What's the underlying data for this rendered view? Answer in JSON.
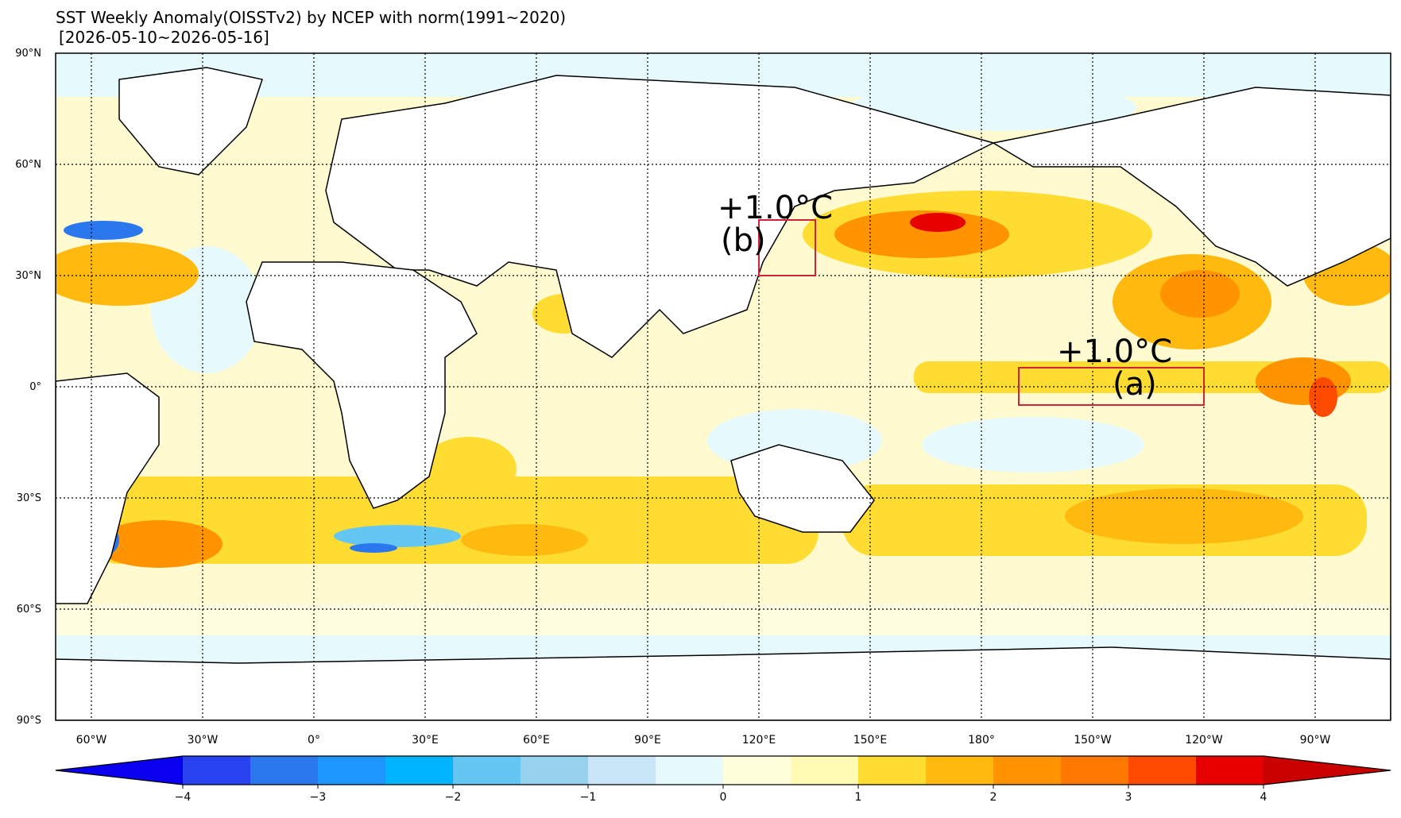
{
  "header": {
    "title": "SST Weekly Anomaly(OISSTv2) by NCEP with norm(1991~2020)",
    "date_range": "[2026-05-10~2026-05-16]"
  },
  "map": {
    "projection": "PlateCarree, central longitude 180",
    "lat_ticks": [
      "90°N",
      "60°N",
      "30°N",
      "0°",
      "30°S",
      "60°S",
      "90°S"
    ],
    "lon_ticks": [
      "60°W",
      "30°W",
      "0°",
      "30°E",
      "60°E",
      "90°E",
      "120°E",
      "150°E",
      "180°",
      "150°W",
      "120°W",
      "90°W"
    ],
    "regions": [
      {
        "id": "a",
        "label": "(a)",
        "value": "+1.0°C",
        "lon_range": [
          170,
          240
        ],
        "lat_range": [
          -5,
          5
        ]
      },
      {
        "id": "b",
        "label": "(b)",
        "value": "+1.0°C",
        "lon_range": [
          120,
          135
        ],
        "lat_range": [
          30,
          45
        ]
      }
    ],
    "box_color": "#d0213b"
  },
  "colorbar": {
    "tick_labels": [
      "−4",
      "−3",
      "−2",
      "−1",
      "0",
      "1",
      "2",
      "3",
      "4"
    ],
    "bins": [
      -4.5,
      -4,
      -3.5,
      -3,
      -2.5,
      -2,
      -1.5,
      -1,
      -0.5,
      0,
      0.5,
      1,
      1.5,
      2,
      2.5,
      3,
      3.5,
      4,
      4.5
    ],
    "colors": [
      "#0a00ef",
      "#2842ef",
      "#2b78ee",
      "#1e96ff",
      "#00b4ff",
      "#64c7f3",
      "#96d2ee",
      "#c8e6f7",
      "#e6f9fd",
      "#ffffdc",
      "#fffab4",
      "#ffdc32",
      "#ffb90f",
      "#ff9300",
      "#ff7800",
      "#ff4b00",
      "#e60000",
      "#c80000"
    ],
    "extend": "both"
  }
}
